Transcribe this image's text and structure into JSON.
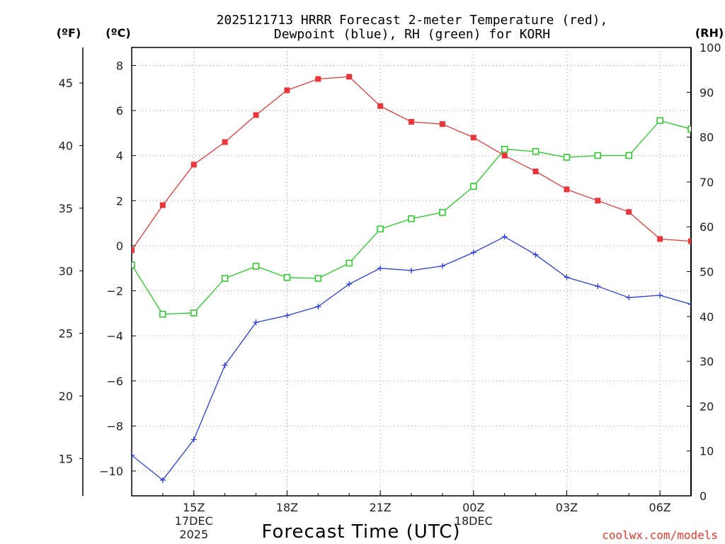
{
  "chart_data": {
    "type": "line",
    "title_lines": [
      "2025121713 HRRR Forecast 2-meter Temperature (red),",
      "Dewpoint (blue), RH (green) for KORH"
    ],
    "unit_labels": {
      "fahrenheit": "(ºF)",
      "celsius": "(ºC)",
      "rh": "(RH)"
    },
    "xlabel": "Forecast Time (UTC)",
    "credit": "coolwx.com/models",
    "x_range_hours": [
      13,
      31
    ],
    "x_ticks": [
      {
        "hour": 15,
        "lines": [
          "15Z",
          "17DEC",
          "2025"
        ]
      },
      {
        "hour": 18,
        "lines": [
          "18Z"
        ]
      },
      {
        "hour": 21,
        "lines": [
          "21Z"
        ]
      },
      {
        "hour": 24,
        "lines": [
          "00Z",
          "18DEC"
        ]
      },
      {
        "hour": 27,
        "lines": [
          "03Z"
        ]
      },
      {
        "hour": 30,
        "lines": [
          "06Z"
        ]
      }
    ],
    "celsius_axis": {
      "range": [
        -11.1,
        8.8
      ],
      "ticks": [
        "8",
        "6",
        "4",
        "2",
        "0",
        "−2",
        "−4",
        "−6",
        "−8",
        "−10"
      ],
      "tick_values": [
        8,
        6,
        4,
        2,
        0,
        -2,
        -4,
        -6,
        -8,
        -10
      ]
    },
    "fahrenheit_axis": {
      "ticks": [
        "45",
        "40",
        "35",
        "30",
        "25",
        "20",
        "15"
      ],
      "tick_values": [
        45,
        40,
        35,
        30,
        25,
        20,
        15
      ]
    },
    "rh_axis": {
      "range": [
        0,
        100
      ],
      "ticks": [
        "100",
        "90",
        "80",
        "70",
        "60",
        "50",
        "40",
        "30",
        "20",
        "10",
        "0"
      ],
      "tick_values": [
        100,
        90,
        80,
        70,
        60,
        50,
        40,
        30,
        20,
        10,
        0
      ]
    },
    "x": [
      13,
      14,
      15,
      16,
      17,
      18,
      19,
      20,
      21,
      22,
      23,
      24,
      25,
      26,
      27,
      28,
      29,
      30,
      31
    ],
    "series": [
      {
        "name": "2-meter Temperature",
        "unit": "C",
        "color": "#e8363a",
        "marker": "filled-square",
        "values": [
          -0.2,
          1.8,
          3.6,
          4.6,
          5.8,
          6.9,
          7.4,
          7.5,
          6.2,
          5.5,
          5.4,
          4.8,
          4.0,
          3.3,
          2.5,
          2.0,
          1.5,
          0.3,
          0.2
        ]
      },
      {
        "name": "Dewpoint",
        "unit": "C",
        "color": "#2a3de0",
        "marker": "plus",
        "values": [
          -9.3,
          -10.4,
          -8.6,
          -5.3,
          -3.4,
          -3.1,
          -2.7,
          -1.7,
          -1.0,
          -1.1,
          -0.9,
          -0.3,
          0.4,
          -0.4,
          -1.4,
          -1.8,
          -2.3,
          -2.2,
          -2.6
        ]
      },
      {
        "name": "RH",
        "unit": "%",
        "color": "#22cc22",
        "marker": "open-square",
        "values": [
          51.5,
          40.5,
          40.8,
          48.5,
          51.2,
          48.7,
          48.5,
          51.9,
          59.5,
          61.8,
          63.2,
          69.0,
          77.3,
          76.8,
          75.5,
          75.9,
          75.9,
          83.7,
          81.8
        ]
      }
    ]
  }
}
